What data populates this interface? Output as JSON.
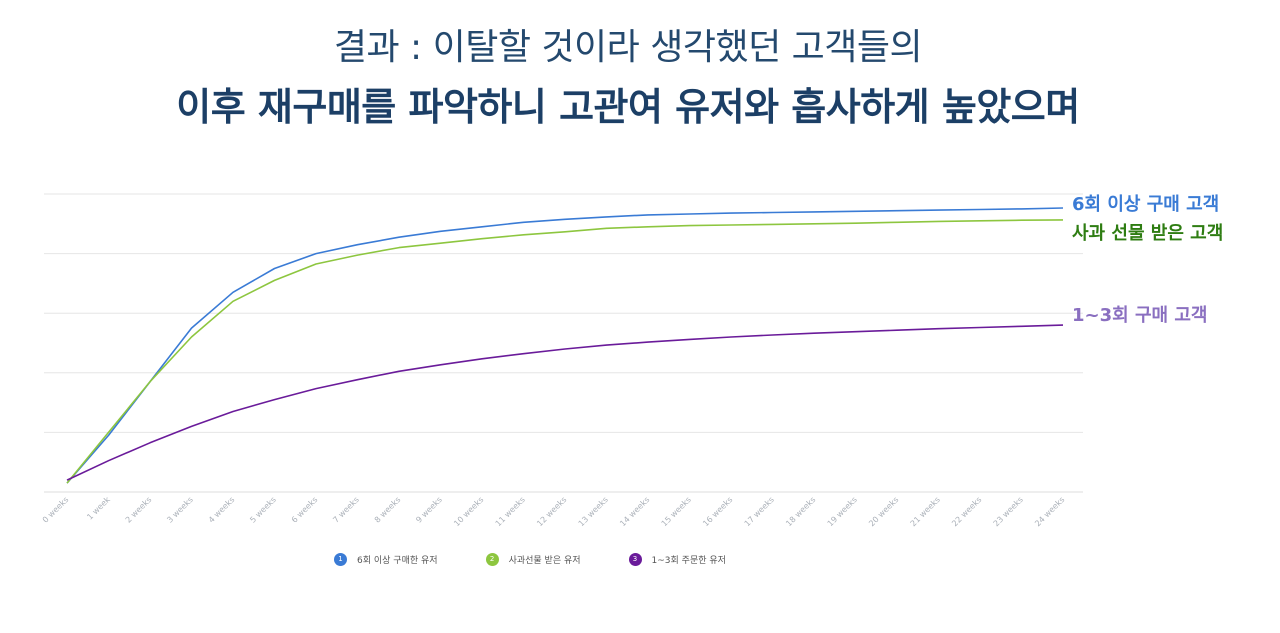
{
  "title": {
    "line1": "결과 : 이탈할 것이라 생각했던 고객들의",
    "line2": "이후 재구매를 파악하니 고관여 유저와 흡사하게 높았으며"
  },
  "colors": {
    "series1": "#3a7bd5",
    "series2": "#8dc63f",
    "series3": "#6a1b9a",
    "label1": "#3a7bd5",
    "label2": "#2e7d12",
    "label3": "#8a6fc0",
    "grid": "#e6e6e6"
  },
  "legend": [
    {
      "num": "1",
      "label": "6회 이상 구매한 유저"
    },
    {
      "num": "2",
      "label": "사과선물 받은 유저"
    },
    {
      "num": "3",
      "label": "1~3회 주문한 유저"
    }
  ],
  "chart_data": {
    "type": "line",
    "title": "",
    "xlabel": "",
    "ylabel": "",
    "ylim": [
      0,
      100
    ],
    "grid": true,
    "legend_position": "bottom",
    "categories": [
      "0 weeks",
      "1 week",
      "2 weeks",
      "3 weeks",
      "4 weeks",
      "5 weeks",
      "6 weeks",
      "7 weeks",
      "8 weeks",
      "9 weeks",
      "10 weeks",
      "11 weeks",
      "12 weeks",
      "13 weeks",
      "14 weeks",
      "15 weeks",
      "16 weeks",
      "17 weeks",
      "18 weeks",
      "19 weeks",
      "20 weeks",
      "21 weeks",
      "22 weeks",
      "23 weeks",
      "24 weeks"
    ],
    "series": [
      {
        "name": "6회 이상 구매한 유저",
        "end_label": "6회 이상 구매 고객",
        "values": [
          3,
          19,
          37,
          55,
          67,
          75,
          80,
          83,
          85.5,
          87.5,
          89,
          90.5,
          91.5,
          92.3,
          93,
          93.3,
          93.6,
          93.8,
          94,
          94.2,
          94.4,
          94.6,
          94.8,
          95,
          95.3
        ]
      },
      {
        "name": "사과선물 받은 유저",
        "end_label": "사과 선물 받은 고객",
        "values": [
          3,
          20,
          37,
          52,
          64,
          71,
          76.5,
          79.5,
          82,
          83.5,
          85,
          86.3,
          87.3,
          88.5,
          89,
          89.4,
          89.6,
          89.8,
          90,
          90.2,
          90.5,
          90.8,
          91,
          91.2,
          91.3
        ]
      },
      {
        "name": "1~3회 주문한 유저",
        "end_label": "1~3회 구매 고객",
        "values": [
          4,
          10.5,
          16.5,
          22,
          27,
          31,
          34.7,
          37.7,
          40.5,
          42.7,
          44.7,
          46.4,
          48,
          49.3,
          50.3,
          51.2,
          52,
          52.7,
          53.3,
          53.8,
          54.3,
          54.8,
          55.2,
          55.6,
          56
        ]
      }
    ]
  }
}
